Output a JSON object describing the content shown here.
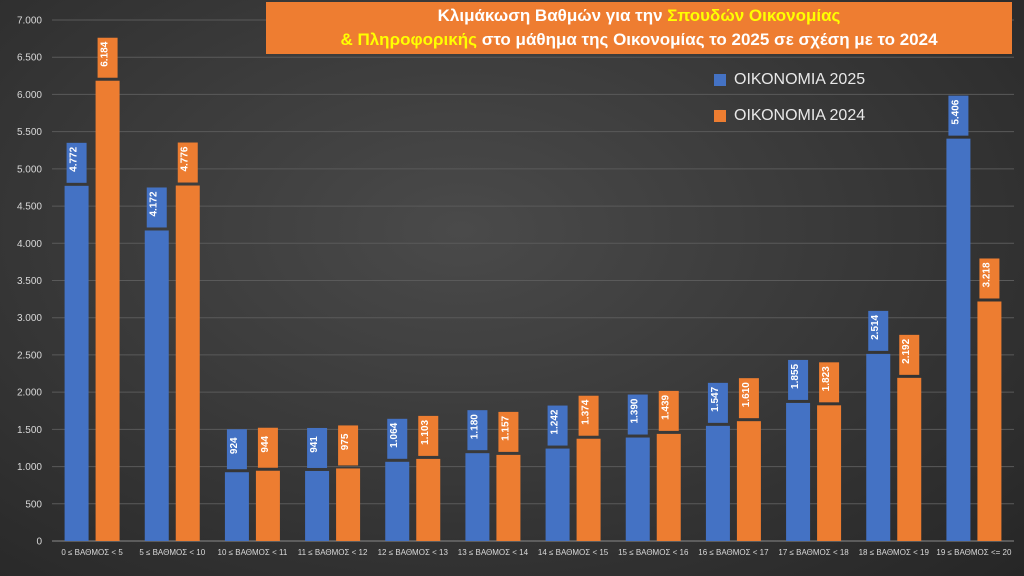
{
  "title": {
    "part1": "Κλιμάκωση Βαθμών για την ",
    "part2": "Σπουδών Οικονομίας",
    "part3": "& Πληροφορικής",
    "part4": " στο μάθημα της  Οικονομίας το 2025 σε σχέση με το 2024"
  },
  "colors": {
    "series_2025": "#4472c4",
    "series_2024": "#ed7d31",
    "title_bg": "#ee7d31",
    "title_highlight": "#ffff00",
    "text": "#d9d9d9",
    "grid": "#5a5a5a"
  },
  "chart_data": {
    "type": "bar",
    "categories": [
      "0 ≤ ΒΑΘΜΟΣ < 5",
      "5 ≤ ΒΑΘΜΟΣ < 10",
      "10 ≤ ΒΑΘΜΟΣ < 11",
      "11 ≤ ΒΑΘΜΟΣ < 12",
      "12 ≤ ΒΑΘΜΟΣ < 13",
      "13 ≤ ΒΑΘΜΟΣ < 14",
      "14 ≤ ΒΑΘΜΟΣ < 15",
      "15 ≤ ΒΑΘΜΟΣ < 16",
      "16 ≤ ΒΑΘΜΟΣ < 17",
      "17 ≤ ΒΑΘΜΟΣ < 18",
      "18 ≤ ΒΑΘΜΟΣ < 19",
      "19 ≤ ΒΑΘΜΟΣ <= 20"
    ],
    "series": [
      {
        "name": "ΟΙΚΟΝΟΜΙΑ 2025",
        "values": [
          4772,
          4172,
          924,
          941,
          1064,
          1180,
          1242,
          1390,
          1547,
          1855,
          2514,
          5406
        ],
        "labels": [
          "4.772",
          "4.172",
          "924",
          "941",
          "1.064",
          "1.180",
          "1.242",
          "1.390",
          "1.547",
          "1.855",
          "2.514",
          "5.406"
        ]
      },
      {
        "name": "ΟΙΚΟΝΟΜΙΑ 2024",
        "values": [
          6184,
          4776,
          944,
          975,
          1103,
          1157,
          1374,
          1439,
          1610,
          1823,
          2192,
          3218
        ],
        "labels": [
          "6.184",
          "4.776",
          "944",
          "975",
          "1.103",
          "1.157",
          "1.374",
          "1.439",
          "1.610",
          "1.823",
          "2.192",
          "3.218"
        ]
      }
    ],
    "ylim": [
      0,
      7000
    ],
    "yticks": [
      0,
      500,
      1000,
      1500,
      2000,
      2500,
      3000,
      3500,
      4000,
      4500,
      5000,
      5500,
      6000,
      6500,
      7000
    ],
    "ytick_labels": [
      "0",
      "500",
      "1.000",
      "1.500",
      "2.000",
      "2.500",
      "3.000",
      "3.500",
      "4.000",
      "4.500",
      "5.000",
      "5.500",
      "6.000",
      "6.500",
      "7.000"
    ],
    "grid": true,
    "legend_position": "top-right"
  }
}
